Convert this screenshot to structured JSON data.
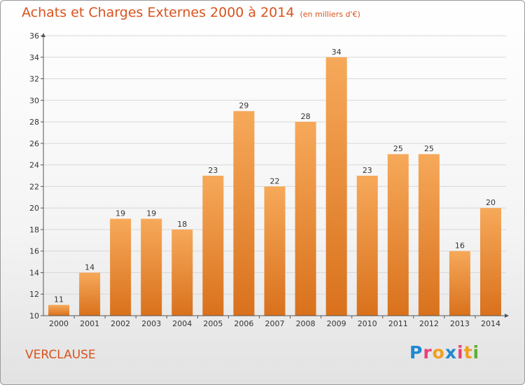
{
  "header": {
    "title": "Achats et Charges Externes 2000 à 2014",
    "unit": "(en milliers d'€)"
  },
  "footer": {
    "commune": "VERCLAUSE",
    "logo_letters": [
      "P",
      "r",
      "o",
      "x",
      "i",
      "t",
      "i"
    ],
    "logo_colors": [
      "#1e88d2",
      "#e8407a",
      "#f0a020",
      "#1e88d2",
      "#e8407a",
      "#f0a020",
      "#5ab030"
    ]
  },
  "colors": {
    "accent": "#d9531e",
    "bar_top": "#f6a95a",
    "bar_bottom": "#d9711c",
    "grid": "#d8d8d8"
  },
  "chart_data": {
    "type": "bar",
    "title": "Achats et Charges Externes 2000 à 2014",
    "categories": [
      "2000",
      "2001",
      "2002",
      "2003",
      "2004",
      "2005",
      "2006",
      "2007",
      "2008",
      "2009",
      "2010",
      "2011",
      "2012",
      "2013",
      "2014"
    ],
    "values": [
      11,
      14,
      19,
      19,
      18,
      23,
      29,
      22,
      28,
      34,
      23,
      25,
      25,
      16,
      20
    ],
    "ylim": [
      10,
      36
    ],
    "yticks": [
      10,
      12,
      14,
      16,
      18,
      20,
      22,
      24,
      26,
      28,
      30,
      32,
      34,
      36
    ],
    "grid": true,
    "data_labels": true
  }
}
